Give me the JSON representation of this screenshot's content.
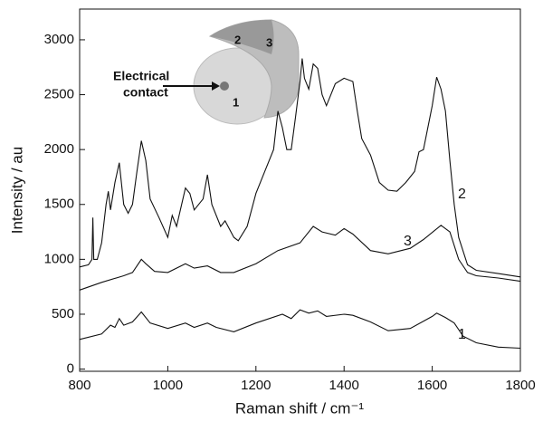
{
  "chart_data": {
    "type": "line",
    "x_label": "Raman shift / cm⁻¹",
    "y_label": "Intensity / au",
    "xlim": [
      800,
      1800
    ],
    "xticks": [
      800,
      1000,
      1200,
      1400,
      1600,
      1800
    ],
    "ylim": [
      -20,
      3280
    ],
    "yticks": [
      0,
      500,
      1000,
      1500,
      2000,
      2500,
      3000
    ],
    "series": [
      {
        "name": "1",
        "color": "#111111",
        "x": [
          800,
          850,
          870,
          880,
          890,
          900,
          920,
          940,
          960,
          1000,
          1040,
          1060,
          1090,
          1110,
          1150,
          1200,
          1260,
          1280,
          1300,
          1320,
          1340,
          1360,
          1400,
          1420,
          1460,
          1500,
          1550,
          1600,
          1610,
          1630,
          1650,
          1670,
          1700,
          1750,
          1800
        ],
        "values": [
          270,
          320,
          400,
          380,
          460,
          400,
          430,
          520,
          420,
          370,
          420,
          380,
          420,
          380,
          340,
          420,
          500,
          460,
          540,
          510,
          530,
          480,
          500,
          490,
          430,
          350,
          370,
          480,
          510,
          470,
          420,
          300,
          240,
          200,
          190
        ]
      },
      {
        "name": "2",
        "color": "#111111",
        "x": [
          800,
          820,
          828,
          830,
          832,
          840,
          850,
          860,
          865,
          870,
          880,
          890,
          900,
          910,
          920,
          930,
          940,
          950,
          960,
          980,
          1000,
          1010,
          1020,
          1040,
          1050,
          1060,
          1080,
          1090,
          1100,
          1120,
          1130,
          1150,
          1160,
          1180,
          1200,
          1220,
          1240,
          1250,
          1260,
          1270,
          1280,
          1290,
          1300,
          1305,
          1310,
          1320,
          1330,
          1340,
          1350,
          1360,
          1380,
          1400,
          1420,
          1430,
          1440,
          1460,
          1480,
          1500,
          1520,
          1540,
          1560,
          1570,
          1580,
          1600,
          1610,
          1620,
          1630,
          1640,
          1650,
          1660,
          1680,
          1700,
          1750,
          1800
        ],
        "values": [
          930,
          950,
          1000,
          1380,
          1000,
          1000,
          1150,
          1500,
          1620,
          1450,
          1700,
          1880,
          1500,
          1420,
          1500,
          1800,
          2080,
          1900,
          1550,
          1380,
          1200,
          1400,
          1300,
          1650,
          1600,
          1450,
          1550,
          1770,
          1500,
          1300,
          1350,
          1200,
          1170,
          1300,
          1600,
          1800,
          2000,
          2350,
          2200,
          2000,
          2000,
          2300,
          2620,
          2830,
          2650,
          2550,
          2780,
          2740,
          2500,
          2400,
          2600,
          2650,
          2620,
          2350,
          2100,
          1950,
          1700,
          1630,
          1620,
          1700,
          1800,
          1980,
          2000,
          2400,
          2660,
          2550,
          2350,
          1900,
          1500,
          1200,
          950,
          900,
          870,
          840
        ]
      },
      {
        "name": "3",
        "color": "#111111",
        "x": [
          800,
          850,
          900,
          920,
          940,
          950,
          970,
          1000,
          1040,
          1060,
          1090,
          1120,
          1150,
          1200,
          1250,
          1300,
          1330,
          1350,
          1380,
          1400,
          1420,
          1460,
          1500,
          1550,
          1580,
          1620,
          1640,
          1660,
          1680,
          1700,
          1750,
          1800
        ],
        "values": [
          720,
          790,
          850,
          880,
          1000,
          960,
          890,
          880,
          960,
          920,
          940,
          880,
          880,
          960,
          1080,
          1150,
          1300,
          1250,
          1220,
          1280,
          1230,
          1080,
          1050,
          1100,
          1180,
          1310,
          1250,
          1000,
          880,
          850,
          830,
          800
        ]
      }
    ],
    "inset": {
      "contact_label": [
        "Electrical",
        "contact"
      ],
      "face_labels": [
        "1",
        "2",
        "3"
      ]
    }
  }
}
